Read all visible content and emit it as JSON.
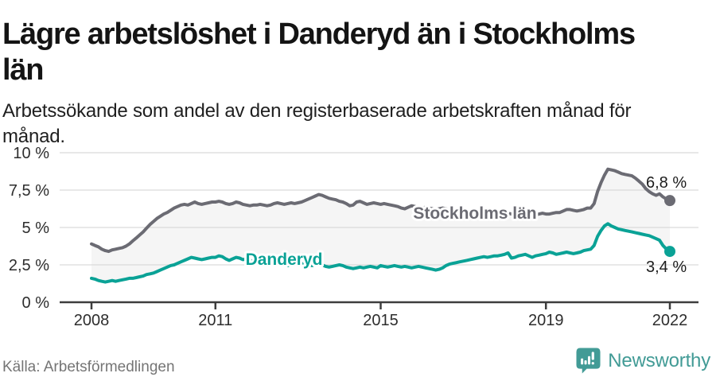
{
  "header": {
    "title_lines": [
      "Lägre arbetslöshet i Danderyd än i Stockholms",
      "län"
    ],
    "subtitle_lines": [
      "Arbetssökande som andel av den registerbaserade arbetskraften månad för",
      "månad."
    ]
  },
  "source": "Källa: Arbetsförmedlingen",
  "logo": {
    "text": "Newsworthy",
    "color": "#429b96"
  },
  "colors": {
    "stockholm": "#6b6b73",
    "danderyd": "#0aa296",
    "between_fill": "#f5f5f5",
    "grid": "#d9d9d9",
    "axis": "#3d3d3d",
    "tick_text": "#2d2d2d",
    "end_label_text": "#1c1c1c",
    "halo": "#ffffff"
  },
  "chart_data": {
    "type": "line",
    "title": "Lägre arbetslöshet i Danderyd än i Stockholms län",
    "subtitle": "Arbetssökande som andel av den registerbaserade arbetskraften månad för månad.",
    "x_start": "2008-01",
    "x_end": "2022-01",
    "interval": "monthly",
    "ylim": [
      0,
      10
    ],
    "grid": true,
    "y_ticks": [
      {
        "value": 0,
        "label": "0 %"
      },
      {
        "value": 2.5,
        "label": "2,5 %"
      },
      {
        "value": 5,
        "label": "5 %"
      },
      {
        "value": 7.5,
        "label": "7,5 %"
      },
      {
        "value": 10,
        "label": "10 %"
      }
    ],
    "x_ticks": [
      {
        "month": 0,
        "label": "2008"
      },
      {
        "month": 36,
        "label": "2011"
      },
      {
        "month": 84,
        "label": "2015"
      },
      {
        "month": 132,
        "label": "2019"
      },
      {
        "month": 168,
        "label": "2022"
      }
    ],
    "series": [
      {
        "name": "Stockholms län",
        "color": "#6b6b73",
        "end_label": "6,8 %",
        "end_value": 6.8,
        "values": [
          3.9,
          3.8,
          3.7,
          3.55,
          3.45,
          3.4,
          3.5,
          3.55,
          3.6,
          3.65,
          3.75,
          3.9,
          4.1,
          4.3,
          4.5,
          4.7,
          4.95,
          5.2,
          5.4,
          5.6,
          5.75,
          5.9,
          6.0,
          6.15,
          6.3,
          6.4,
          6.5,
          6.55,
          6.5,
          6.6,
          6.7,
          6.6,
          6.55,
          6.6,
          6.65,
          6.7,
          6.7,
          6.75,
          6.7,
          6.6,
          6.55,
          6.6,
          6.7,
          6.65,
          6.55,
          6.5,
          6.45,
          6.5,
          6.5,
          6.55,
          6.5,
          6.45,
          6.5,
          6.6,
          6.65,
          6.6,
          6.55,
          6.6,
          6.65,
          6.6,
          6.65,
          6.7,
          6.8,
          6.9,
          7.0,
          7.1,
          7.2,
          7.15,
          7.05,
          6.95,
          6.9,
          6.85,
          6.75,
          6.7,
          6.6,
          6.45,
          6.5,
          6.7,
          6.75,
          6.65,
          6.55,
          6.6,
          6.65,
          6.6,
          6.55,
          6.6,
          6.55,
          6.5,
          6.45,
          6.4,
          6.3,
          6.25,
          6.35,
          6.45,
          6.4,
          6.35,
          6.3,
          6.35,
          6.3,
          6.25,
          6.2,
          6.25,
          6.3,
          6.25,
          6.15,
          6.1,
          6.05,
          6.1,
          6.15,
          6.1,
          6.05,
          6.0,
          6.0,
          6.05,
          6.1,
          6.05,
          6.0,
          5.95,
          5.95,
          6.0,
          6.0,
          5.95,
          5.9,
          5.9,
          5.85,
          5.9,
          5.95,
          5.95,
          5.9,
          5.85,
          5.9,
          5.95,
          5.9,
          5.9,
          5.95,
          6.0,
          6.0,
          6.1,
          6.2,
          6.2,
          6.15,
          6.1,
          6.15,
          6.2,
          6.3,
          6.3,
          6.6,
          7.4,
          8.0,
          8.5,
          8.9,
          8.85,
          8.8,
          8.7,
          8.6,
          8.55,
          8.5,
          8.45,
          8.3,
          8.1,
          7.9,
          7.6,
          7.4,
          7.25,
          7.15,
          7.25,
          7.05,
          6.9,
          6.8
        ]
      },
      {
        "name": "Danderyd",
        "color": "#0aa296",
        "end_label": "3,4 %",
        "end_value": 3.4,
        "values": [
          1.6,
          1.55,
          1.45,
          1.4,
          1.35,
          1.4,
          1.45,
          1.4,
          1.45,
          1.5,
          1.55,
          1.6,
          1.6,
          1.65,
          1.7,
          1.75,
          1.85,
          1.9,
          1.95,
          2.05,
          2.15,
          2.25,
          2.35,
          2.45,
          2.5,
          2.6,
          2.7,
          2.8,
          2.9,
          3.0,
          2.95,
          2.9,
          2.85,
          2.9,
          2.95,
          3.0,
          3.0,
          3.1,
          3.05,
          2.9,
          2.8,
          2.9,
          3.0,
          2.95,
          2.85,
          2.9,
          2.8,
          2.75,
          2.7,
          2.75,
          2.7,
          2.6,
          2.55,
          2.6,
          2.65,
          2.6,
          2.5,
          2.45,
          2.5,
          2.55,
          2.5,
          2.55,
          2.6,
          2.5,
          2.45,
          2.5,
          2.55,
          2.5,
          2.4,
          2.35,
          2.4,
          2.45,
          2.5,
          2.45,
          2.35,
          2.3,
          2.25,
          2.3,
          2.35,
          2.3,
          2.35,
          2.4,
          2.35,
          2.3,
          2.45,
          2.4,
          2.35,
          2.4,
          2.45,
          2.4,
          2.35,
          2.4,
          2.35,
          2.3,
          2.35,
          2.4,
          2.35,
          2.3,
          2.25,
          2.2,
          2.15,
          2.2,
          2.3,
          2.45,
          2.55,
          2.6,
          2.65,
          2.7,
          2.75,
          2.8,
          2.85,
          2.9,
          2.95,
          3.0,
          3.05,
          3.0,
          3.05,
          3.1,
          3.1,
          3.15,
          3.2,
          3.3,
          2.95,
          3.0,
          3.1,
          3.15,
          3.2,
          3.1,
          3.0,
          3.1,
          3.15,
          3.2,
          3.25,
          3.35,
          3.3,
          3.2,
          3.25,
          3.3,
          3.35,
          3.3,
          3.25,
          3.3,
          3.35,
          3.45,
          3.5,
          3.55,
          3.8,
          4.4,
          4.8,
          5.1,
          5.25,
          5.1,
          5.0,
          4.9,
          4.85,
          4.8,
          4.75,
          4.7,
          4.65,
          4.6,
          4.55,
          4.5,
          4.45,
          4.35,
          4.25,
          4.15,
          3.8,
          3.55,
          3.4
        ]
      }
    ],
    "legend_position": "inline-labels"
  }
}
